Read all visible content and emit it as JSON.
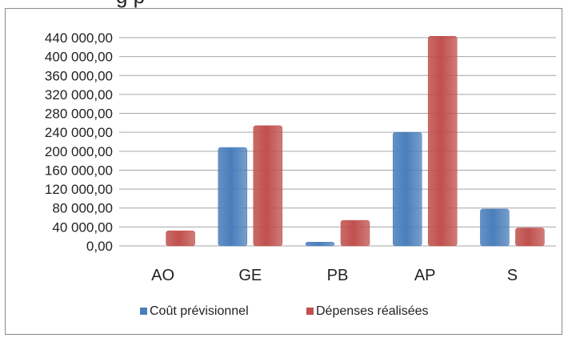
{
  "header_fragment": "g p",
  "chart_data": {
    "type": "bar",
    "categories": [
      "AO",
      "GE",
      "PB",
      "AP",
      "S"
    ],
    "series": [
      {
        "name": "Coût prévisionnel",
        "values": [
          0,
          208000,
          8000,
          240000,
          78000
        ],
        "color": "#4a7ebb"
      },
      {
        "name": "Dépenses réalisées",
        "values": [
          32000,
          254000,
          54000,
          443000,
          38000
        ],
        "color": "#c0504d"
      }
    ],
    "ylim": [
      0,
      440000
    ],
    "yticks": [
      {
        "value": 0,
        "label": "0,00"
      },
      {
        "value": 40000,
        "label": "40 000,00"
      },
      {
        "value": 80000,
        "label": "80 000,00"
      },
      {
        "value": 120000,
        "label": "120 000,00"
      },
      {
        "value": 160000,
        "label": "160 000,00"
      },
      {
        "value": 200000,
        "label": "200 000,00"
      },
      {
        "value": 240000,
        "label": "240 000,00"
      },
      {
        "value": 280000,
        "label": "280 000,00"
      },
      {
        "value": 320000,
        "label": "320 000,00"
      },
      {
        "value": 360000,
        "label": "360 000,00"
      },
      {
        "value": 400000,
        "label": "400 000,00"
      },
      {
        "value": 440000,
        "label": "440 000,00"
      }
    ],
    "grid": true,
    "legend_position": "bottom"
  }
}
